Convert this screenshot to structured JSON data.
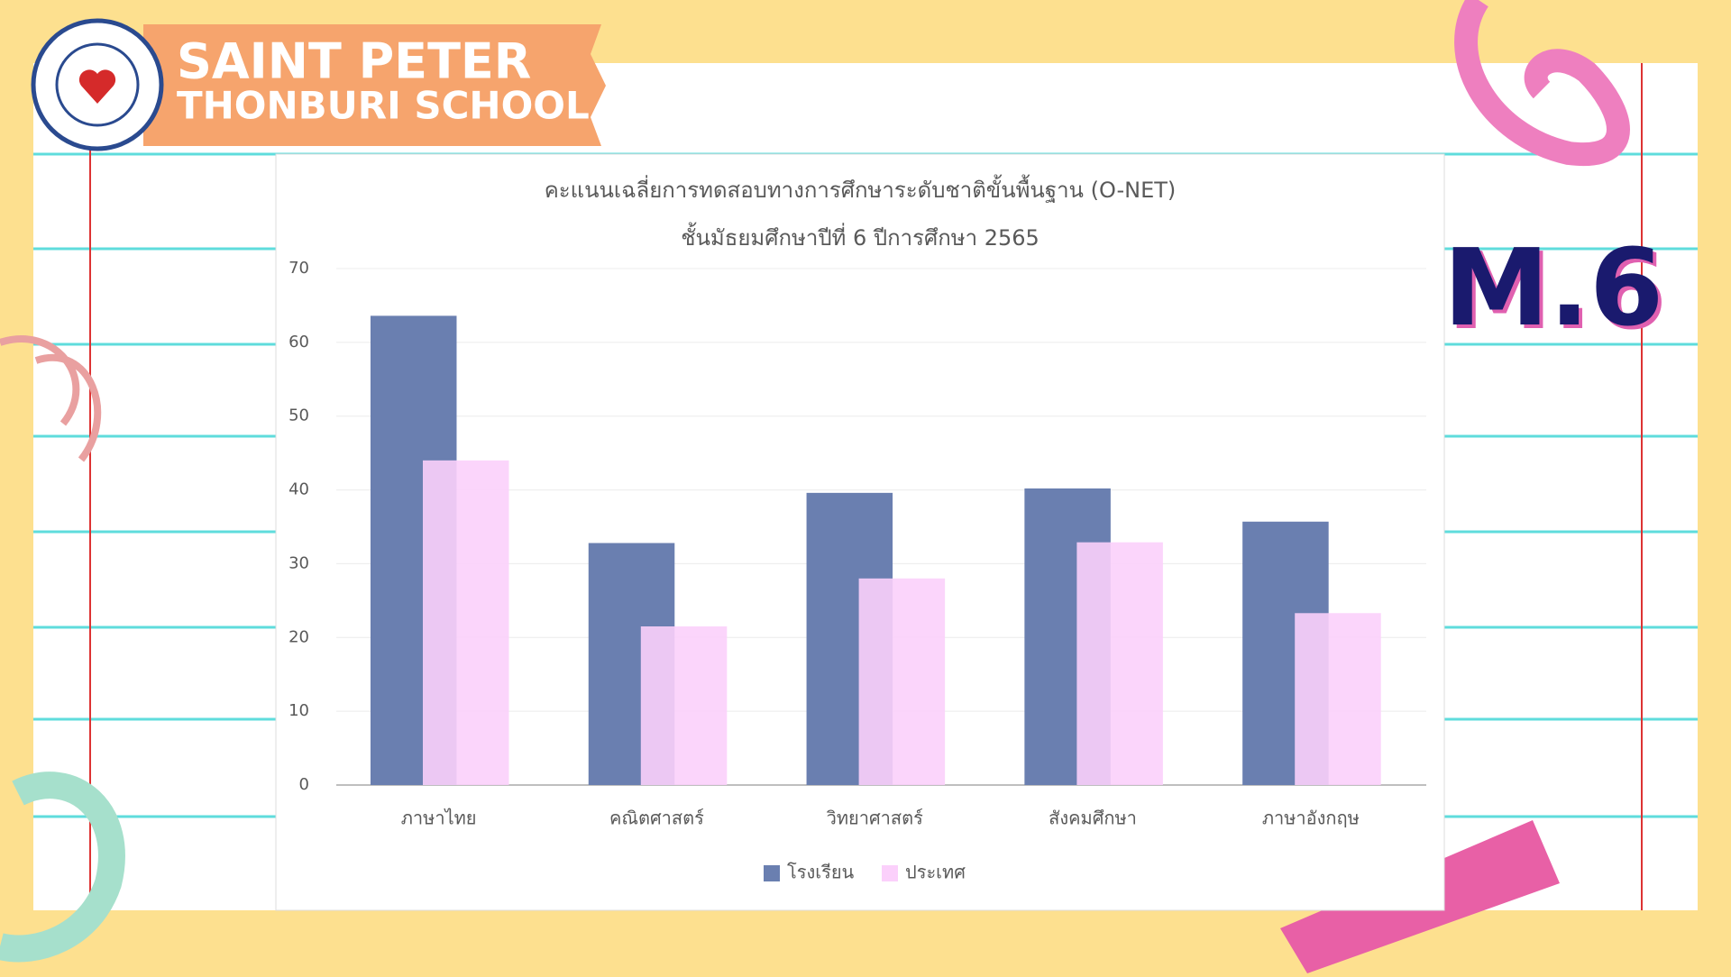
{
  "header": {
    "school_name_line1": "SAINT PETER",
    "school_name_line2": "THONBURI SCHOOL",
    "grade": "M.6"
  },
  "chart_data": {
    "type": "bar",
    "title": "คะแนนเฉลี่ยการทดสอบทางการศึกษาระดับชาติขั้นพื้นฐาน (O-NET)",
    "subtitle": "ชั้นมัธยมศึกษาปีที่ 6 ปีการศึกษา 2565",
    "categories": [
      "ภาษาไทย",
      "คณิตศาสตร์",
      "วิทยาศาสตร์",
      "สังคมศึกษา",
      "ภาษาอังกฤษ"
    ],
    "series": [
      {
        "name": "โรงเรียน",
        "color": "#6a7fb0",
        "values": [
          63.6,
          32.8,
          39.6,
          40.2,
          35.7
        ]
      },
      {
        "name": "ประเทศ",
        "color": "#fbd0fb",
        "values": [
          44.0,
          21.5,
          28.0,
          32.9,
          23.3
        ]
      }
    ],
    "ylim": [
      0,
      70
    ],
    "yticks": [
      0,
      10,
      20,
      30,
      40,
      50,
      60,
      70
    ],
    "grid": true,
    "legend": "bottom"
  }
}
